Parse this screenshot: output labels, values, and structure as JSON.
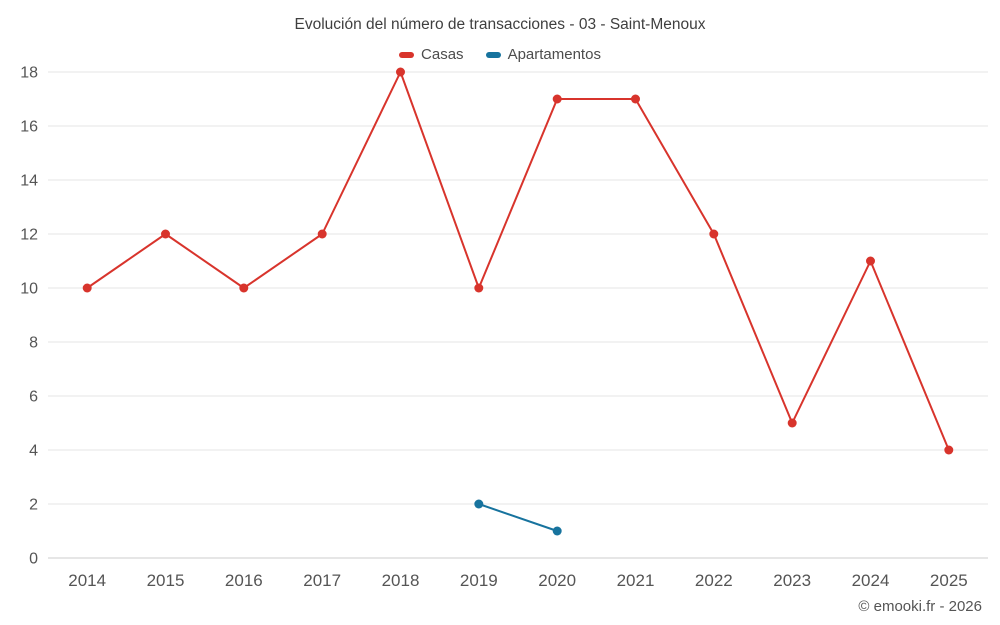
{
  "footer": "© emooki.fr - 2026",
  "colors": {
    "background": "#ffffff",
    "grid": "#e6e6e6",
    "baseline": "#cccccc",
    "axis_text": "#555555",
    "title_text": "#3f3f3f"
  },
  "chart_data": {
    "type": "line",
    "title": "Evolución del número de transacciones - 03 - Saint-Menoux",
    "xlabel": "",
    "ylabel": "",
    "categories": [
      "2014",
      "2015",
      "2016",
      "2017",
      "2018",
      "2019",
      "2020",
      "2021",
      "2022",
      "2023",
      "2024",
      "2025"
    ],
    "series": [
      {
        "name": "Casas",
        "color": "#d8342c",
        "values": [
          10,
          12,
          10,
          12,
          18,
          10,
          17,
          17,
          12,
          5,
          11,
          4
        ]
      },
      {
        "name": "Apartamentos",
        "color": "#17739e",
        "values": [
          null,
          null,
          null,
          null,
          null,
          2,
          1,
          null,
          null,
          null,
          null,
          null
        ]
      }
    ],
    "ylim": [
      0,
      18
    ],
    "ytick_step": 2,
    "grid": true,
    "legend_position": "top"
  }
}
